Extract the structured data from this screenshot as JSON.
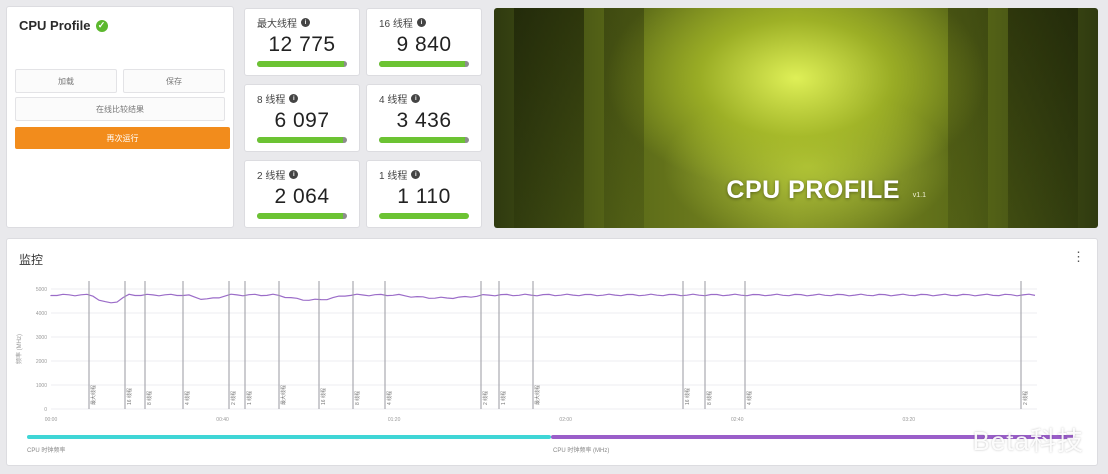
{
  "profile": {
    "title": "CPU Profile",
    "btn_left": "加载",
    "btn_right": "保存",
    "btn_compare": "在线比较结果",
    "btn_run": "再次运行",
    "check_icon": "check-circle-icon"
  },
  "tiles": [
    {
      "label": "最大线程",
      "value": "12 775",
      "fill": 0.97
    },
    {
      "label": "16 线程",
      "value": "9 840",
      "fill": 0.96
    },
    {
      "label": "8 线程",
      "value": "6 097",
      "fill": 0.96
    },
    {
      "label": "4 线程",
      "value": "3 436",
      "fill": 0.96
    },
    {
      "label": "2 线程",
      "value": "2 064",
      "fill": 0.96
    },
    {
      "label": "1 线程",
      "value": "1 110",
      "fill": 1.0
    }
  ],
  "hero": {
    "title": "CPU PROFILE",
    "version": "v1.1"
  },
  "monitor": {
    "title": "监控",
    "more_icon": "more-vertical-icon",
    "y_axis_label": "频率 (MHz)",
    "y_ticks": [
      "5000",
      "4000",
      "3000",
      "2000",
      "1000",
      "0"
    ],
    "x_ticks": [
      "00:00",
      "00:40",
      "01:20",
      "02:00",
      "02:40",
      "03:20"
    ],
    "line_color": "#9b6cc8",
    "legend": [
      {
        "label": "CPU 时钟频率",
        "color": "#3fd6d6"
      },
      {
        "label": "CPU 时钟频率 (MHz)",
        "color": "#9a5ec9"
      }
    ],
    "markers": [
      "最大线程",
      "16 线程",
      "8 线程",
      "4 线程",
      "2 线程",
      "1 线程",
      "最大线程",
      "16 线程",
      "8 线程",
      "4 线程",
      "2 线程",
      "1 线程",
      "最大线程",
      "16 线程",
      "8 线程",
      "4 线程",
      "2 线程",
      "1 线程"
    ]
  },
  "watermark": "Beta科技",
  "colors": {
    "accent_orange": "#f28c1c",
    "bar_green": "#6cc333",
    "cyan": "#3fd6d6",
    "purple": "#9a5ec9"
  }
}
